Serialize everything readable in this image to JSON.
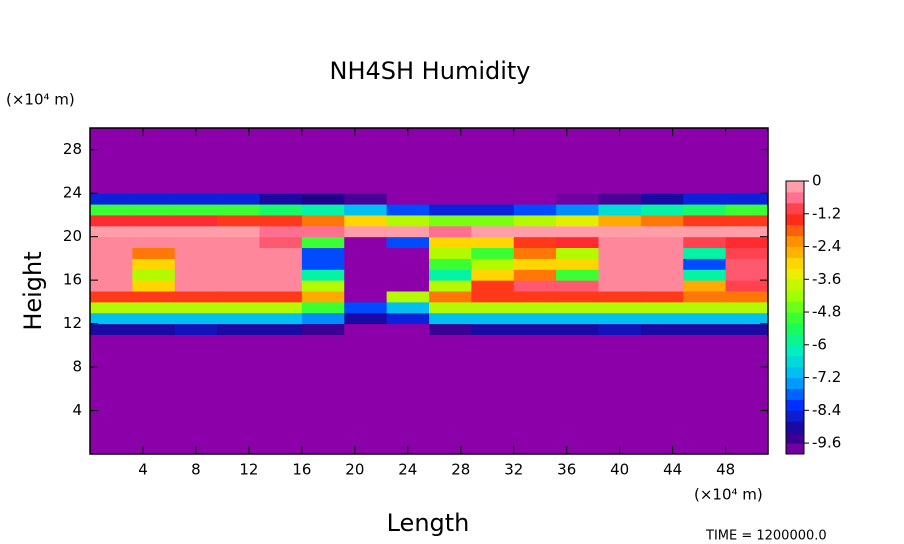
{
  "chart_data": {
    "type": "heatmap",
    "title": "NH4SH Humidity",
    "x_label": "Length",
    "y_label": "Height",
    "x_unit": "(×10⁴ m)",
    "y_unit": "(×10⁴ m)",
    "footer": "TIME = 1200000.0",
    "xlim": [
      0,
      51.2
    ],
    "ylim": [
      0,
      30
    ],
    "xticks": [
      4,
      8,
      12,
      16,
      20,
      24,
      28,
      32,
      36,
      40,
      44,
      48
    ],
    "yticks": [
      4,
      8,
      12,
      16,
      20,
      24,
      28
    ],
    "xbins": [
      0,
      3.2,
      6.4,
      9.6,
      12.8,
      16,
      19.2,
      22.4,
      25.6,
      28.8,
      32,
      35.2,
      38.4,
      41.6,
      44.8,
      48,
      51.2
    ],
    "ybins": [
      0,
      11,
      12,
      13,
      14,
      15,
      16,
      17,
      18,
      19,
      20,
      21,
      22,
      23,
      24,
      30
    ],
    "z": [
      [
        -10,
        -10,
        -10,
        -10,
        -10,
        -10,
        -10,
        -10,
        -10,
        -10,
        -10,
        -10,
        -10,
        -10,
        -10,
        -10
      ],
      [
        -9,
        -9,
        -8.8,
        -9,
        -9,
        -9.4,
        -10,
        -10,
        -9.4,
        -9,
        -9,
        -9,
        -8.8,
        -9,
        -9,
        -9
      ],
      [
        -7,
        -7,
        -7,
        -7,
        -7,
        -7.5,
        -9,
        -8.5,
        -7,
        -7,
        -7,
        -7,
        -7,
        -7,
        -7,
        -7
      ],
      [
        -4,
        -4,
        -4,
        -4,
        -4,
        -5,
        -8,
        -7,
        -4,
        -4,
        -4,
        -4,
        -4,
        -4,
        -4,
        -4
      ],
      [
        -1.5,
        -1.5,
        -1.5,
        -1.5,
        -1.5,
        -2.5,
        -10,
        -4,
        -2,
        -1.5,
        -1.5,
        -1.5,
        -1.5,
        -1.5,
        -2,
        -2
      ],
      [
        -0.4,
        -3,
        -0.4,
        -0.4,
        -0.4,
        -4,
        -10,
        -10,
        -4,
        -1.5,
        -0.8,
        -0.8,
        -0.4,
        -0.4,
        -2.5,
        -1
      ],
      [
        -0.4,
        -4,
        -0.4,
        -0.4,
        -0.4,
        -6,
        -10,
        -10,
        -6,
        -3,
        -2,
        -5,
        -0.4,
        -0.4,
        -6,
        -0.8
      ],
      [
        -0.4,
        -3,
        -0.4,
        -0.4,
        -0.4,
        -8,
        -10,
        -10,
        -5,
        -4,
        -3,
        -3,
        -0.4,
        -0.4,
        -8,
        -0.8
      ],
      [
        -0.4,
        -2,
        -0.4,
        -0.4,
        -0.4,
        -8,
        -10,
        -10,
        -4,
        -5,
        -2,
        -4,
        -0.4,
        -0.4,
        -6,
        -1
      ],
      [
        -0.4,
        -0.4,
        -0.4,
        -0.4,
        -0.8,
        -5,
        -10,
        -8,
        -3,
        -3,
        -1.5,
        -1.2,
        -0.4,
        -0.4,
        -1,
        -1.2
      ],
      [
        -0.2,
        -0.2,
        -0.2,
        -0.2,
        -0.6,
        -0.6,
        -0.2,
        -0.2,
        -0.6,
        -0.2,
        -0.2,
        -0.2,
        -0.2,
        -0.2,
        -0.2,
        -0.2
      ],
      [
        -1.2,
        -1.2,
        -1.2,
        -1.5,
        -1.5,
        -2,
        -3,
        -4,
        -4.5,
        -4.5,
        -4,
        -3.5,
        -2.5,
        -2,
        -1.5,
        -1.5
      ],
      [
        -5,
        -5,
        -5,
        -5,
        -5.5,
        -6,
        -7,
        -8,
        -8.5,
        -8.5,
        -8,
        -7.5,
        -6.5,
        -6,
        -5.5,
        -5
      ],
      [
        -8.5,
        -8.5,
        -8.5,
        -8.5,
        -9,
        -9.2,
        -9.5,
        -10,
        -10,
        -10,
        -10,
        -9.8,
        -9.5,
        -9,
        -8.5,
        -8.5
      ],
      [
        -10,
        -10,
        -10,
        -10,
        -10,
        -10,
        -10,
        -10,
        -10,
        -10,
        -10,
        -10,
        -10,
        -10,
        -10,
        -10
      ]
    ],
    "colorbar": {
      "lim": [
        -10,
        0
      ],
      "ticks": [
        0,
        -1.2,
        -2.4,
        -3.6,
        -4.8,
        -6,
        -7.2,
        -8.4,
        -9.6
      ]
    },
    "colormap": [
      [
        -10,
        "#8c00aa"
      ],
      [
        -9.2,
        "#20008c"
      ],
      [
        -8.2,
        "#0030ff"
      ],
      [
        -7.2,
        "#00b4ff"
      ],
      [
        -6.2,
        "#00f0c0"
      ],
      [
        -5.2,
        "#20ff40"
      ],
      [
        -4.2,
        "#a0ff00"
      ],
      [
        -3.2,
        "#ffe800"
      ],
      [
        -2.2,
        "#ff9000"
      ],
      [
        -1.3,
        "#ff2020"
      ],
      [
        -0.6,
        "#ff7090"
      ],
      [
        0,
        "#ffb4b4"
      ]
    ]
  }
}
